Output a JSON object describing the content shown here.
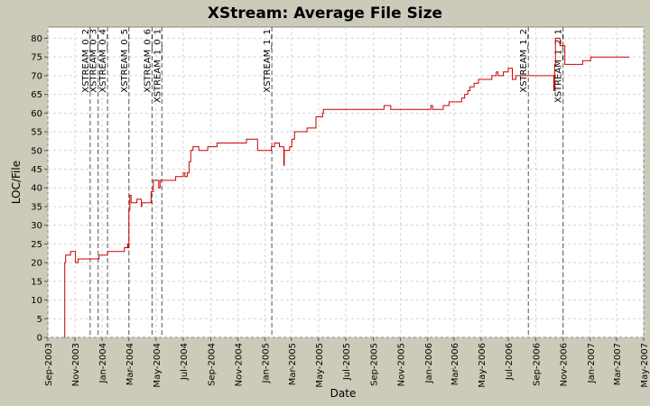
{
  "chart_data": {
    "type": "line",
    "title": "XStream: Average File Size",
    "xlabel": "Date",
    "ylabel": "LOC/File",
    "ylim": [
      0,
      83
    ],
    "xlim": [
      "2003-09-01",
      "2007-05-01"
    ],
    "y_ticks": [
      0,
      5,
      10,
      15,
      20,
      25,
      30,
      35,
      40,
      45,
      50,
      55,
      60,
      65,
      70,
      75,
      80
    ],
    "x_ticks": [
      {
        "date": "2003-09-01",
        "label": "Sep-2003"
      },
      {
        "date": "2003-11-01",
        "label": "Nov-2003"
      },
      {
        "date": "2004-01-01",
        "label": "Jan-2004"
      },
      {
        "date": "2004-03-01",
        "label": "Mar-2004"
      },
      {
        "date": "2004-05-01",
        "label": "May-2004"
      },
      {
        "date": "2004-07-01",
        "label": "Jul-2004"
      },
      {
        "date": "2004-09-01",
        "label": "Sep-2004"
      },
      {
        "date": "2004-11-01",
        "label": "Nov-2004"
      },
      {
        "date": "2005-01-01",
        "label": "Jan-2005"
      },
      {
        "date": "2005-03-01",
        "label": "Mar-2005"
      },
      {
        "date": "2005-05-01",
        "label": "May-2005"
      },
      {
        "date": "2005-07-01",
        "label": "Jul-2005"
      },
      {
        "date": "2005-09-01",
        "label": "Sep-2005"
      },
      {
        "date": "2005-11-01",
        "label": "Nov-2005"
      },
      {
        "date": "2006-01-01",
        "label": "Jan-2006"
      },
      {
        "date": "2006-03-01",
        "label": "Mar-2006"
      },
      {
        "date": "2006-05-01",
        "label": "May-2006"
      },
      {
        "date": "2006-07-01",
        "label": "Jul-2006"
      },
      {
        "date": "2006-09-01",
        "label": "Sep-2006"
      },
      {
        "date": "2006-11-01",
        "label": "Nov-2006"
      },
      {
        "date": "2007-01-01",
        "label": "Jan-2007"
      },
      {
        "date": "2007-03-01",
        "label": "Mar-2007"
      },
      {
        "date": "2007-05-01",
        "label": "May-2007"
      }
    ],
    "grid": true,
    "series_color": "#cc0000",
    "marker_color": "#555555",
    "background": "#ffffff",
    "outer_background": "#cccab8",
    "markers": [
      {
        "label": "XSTREAM_0_2",
        "date": "2003-12-05"
      },
      {
        "label": "XSTREAM_0_3",
        "date": "2003-12-23"
      },
      {
        "label": "XSTREAM_0_4",
        "date": "2004-01-13"
      },
      {
        "label": "XSTREAM_0_5",
        "date": "2004-03-01"
      },
      {
        "label": "XSTREAM_0_6",
        "date": "2004-04-22"
      },
      {
        "label": "XSTREAM_1_0_1",
        "date": "2004-05-14"
      },
      {
        "label": "XSTREAM_1_1",
        "date": "2005-01-16"
      },
      {
        "label": "XSTREAM_1_2",
        "date": "2006-08-15"
      },
      {
        "label": "XSTREAM_1_2_1",
        "date": "2006-11-01"
      }
    ],
    "series": [
      {
        "step": true,
        "points": [
          [
            "2003-10-08",
            0
          ],
          [
            "2003-10-09",
            20
          ],
          [
            "2003-10-11",
            22
          ],
          [
            "2003-10-22",
            23
          ],
          [
            "2003-11-02",
            20
          ],
          [
            "2003-11-08",
            21
          ],
          [
            "2003-12-25",
            22
          ],
          [
            "2004-01-13",
            23
          ],
          [
            "2004-02-20",
            24
          ],
          [
            "2004-02-27",
            25
          ],
          [
            "2004-02-28",
            24
          ],
          [
            "2004-03-01",
            34
          ],
          [
            "2004-03-03",
            38
          ],
          [
            "2004-03-06",
            36
          ],
          [
            "2004-03-19",
            37
          ],
          [
            "2004-03-29",
            35
          ],
          [
            "2004-03-30",
            36
          ],
          [
            "2004-04-20",
            39
          ],
          [
            "2004-04-25",
            42
          ],
          [
            "2004-05-07",
            40
          ],
          [
            "2004-05-10",
            42
          ],
          [
            "2004-06-14",
            43
          ],
          [
            "2004-07-01",
            44
          ],
          [
            "2004-07-05",
            43
          ],
          [
            "2004-07-10",
            44
          ],
          [
            "2004-07-14",
            47
          ],
          [
            "2004-07-18",
            50
          ],
          [
            "2004-07-23",
            51
          ],
          [
            "2004-08-05",
            50
          ],
          [
            "2004-08-25",
            51
          ],
          [
            "2004-09-15",
            52
          ],
          [
            "2004-11-20",
            53
          ],
          [
            "2004-12-15",
            50
          ],
          [
            "2005-01-15",
            51
          ],
          [
            "2005-01-22",
            52
          ],
          [
            "2005-02-02",
            51
          ],
          [
            "2005-02-12",
            46
          ],
          [
            "2005-02-13",
            50
          ],
          [
            "2005-02-25",
            51
          ],
          [
            "2005-03-02",
            53
          ],
          [
            "2005-03-08",
            55
          ],
          [
            "2005-04-05",
            56
          ],
          [
            "2005-04-25",
            59
          ],
          [
            "2005-05-10",
            60
          ],
          [
            "2005-05-12",
            61
          ],
          [
            "2005-09-25",
            62
          ],
          [
            "2005-10-10",
            61
          ],
          [
            "2006-01-08",
            62
          ],
          [
            "2006-01-12",
            61
          ],
          [
            "2006-02-05",
            62
          ],
          [
            "2006-02-18",
            63
          ],
          [
            "2006-03-18",
            64
          ],
          [
            "2006-03-25",
            65
          ],
          [
            "2006-04-01",
            66
          ],
          [
            "2006-04-06",
            67
          ],
          [
            "2006-04-15",
            68
          ],
          [
            "2006-04-25",
            69
          ],
          [
            "2006-05-25",
            70
          ],
          [
            "2006-06-04",
            71
          ],
          [
            "2006-06-08",
            70
          ],
          [
            "2006-06-20",
            71
          ],
          [
            "2006-07-01",
            72
          ],
          [
            "2006-07-10",
            69
          ],
          [
            "2006-07-18",
            70
          ],
          [
            "2006-10-11",
            66
          ],
          [
            "2006-10-13",
            73
          ],
          [
            "2006-10-15",
            80
          ],
          [
            "2006-10-25",
            78
          ],
          [
            "2006-11-05",
            73
          ],
          [
            "2006-12-15",
            74
          ],
          [
            "2007-01-02",
            75
          ],
          [
            "2007-03-30",
            75
          ]
        ]
      }
    ]
  }
}
